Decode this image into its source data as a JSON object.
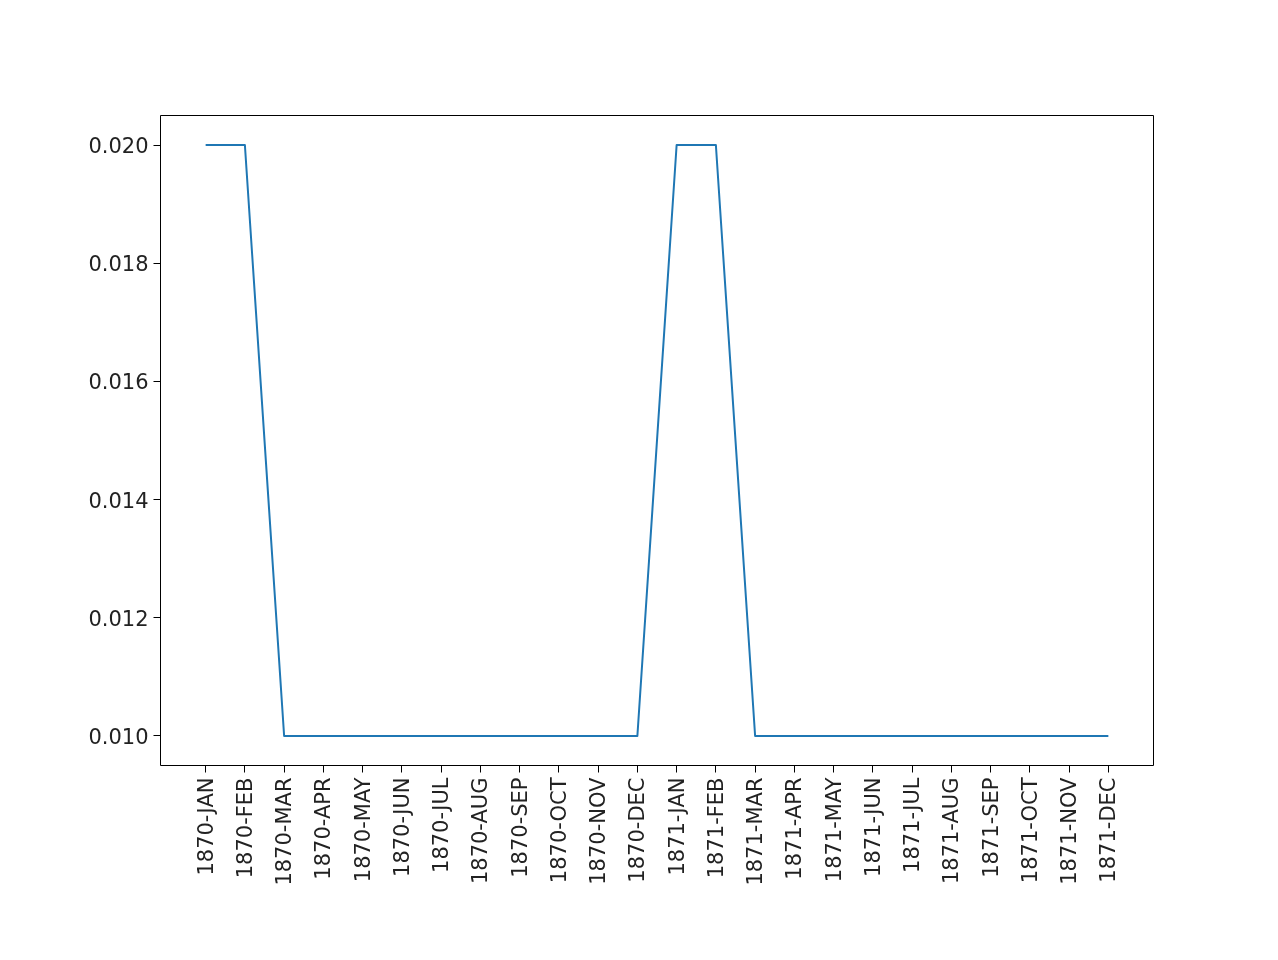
{
  "chart_data": {
    "type": "line",
    "categories": [
      "1870-JAN",
      "1870-FEB",
      "1870-MAR",
      "1870-APR",
      "1870-MAY",
      "1870-JUN",
      "1870-JUL",
      "1870-AUG",
      "1870-SEP",
      "1870-OCT",
      "1870-NOV",
      "1870-DEC",
      "1871-JAN",
      "1871-FEB",
      "1871-MAR",
      "1871-APR",
      "1871-MAY",
      "1871-JUN",
      "1871-JUL",
      "1871-AUG",
      "1871-SEP",
      "1871-OCT",
      "1871-NOV",
      "1871-DEC"
    ],
    "series": [
      {
        "color": "#1f77b4",
        "values": [
          0.02,
          0.02,
          0.01,
          0.01,
          0.01,
          0.01,
          0.01,
          0.01,
          0.01,
          0.01,
          0.01,
          0.01,
          0.02,
          0.02,
          0.01,
          0.01,
          0.01,
          0.01,
          0.01,
          0.01,
          0.01,
          0.01,
          0.01,
          0.01
        ]
      }
    ],
    "ylim": [
      0.0095,
      0.0205
    ],
    "yticks": [
      {
        "value": 0.01,
        "label": "0.010"
      },
      {
        "value": 0.012,
        "label": "0.012"
      },
      {
        "value": 0.014,
        "label": "0.014"
      },
      {
        "value": 0.016,
        "label": "0.016"
      },
      {
        "value": 0.018,
        "label": "0.018"
      },
      {
        "value": 0.02,
        "label": "0.020"
      }
    ],
    "grid": false
  }
}
